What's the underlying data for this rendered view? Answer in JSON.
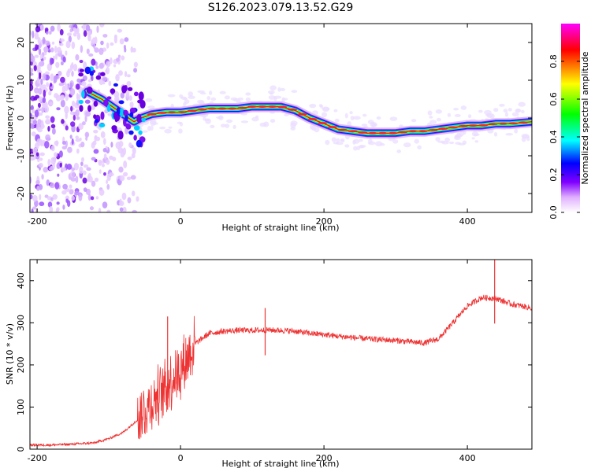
{
  "title": "S126.2023.079.13.52.G29",
  "colors": {
    "snr_line": "#ee3333",
    "ridge_core": "#dd2222",
    "frame": "#000000"
  },
  "chart_data": [
    {
      "type": "heatmap",
      "xlabel": "Height of straight line (km)",
      "ylabel": "Frequency (Hz)",
      "xlim": [
        -210,
        490
      ],
      "ylim": [
        -25,
        25
      ],
      "xticks": [
        -200,
        0,
        200,
        400
      ],
      "yticks": [
        -20,
        -10,
        0,
        10,
        20
      ],
      "colorbar": {
        "label": "Normalized spectral amplitude",
        "range": [
          0,
          1
        ],
        "ticks": [
          0.0,
          0.2,
          0.4,
          0.6,
          0.8
        ],
        "colormap": [
          "#ffffff",
          "#e0b0ff",
          "#8000ff",
          "#0000ff",
          "#00ffff",
          "#00ff00",
          "#ffff00",
          "#ff0000",
          "#ff00ff"
        ]
      },
      "ridge": {
        "x": [
          -130,
          -110,
          -95,
          -80,
          -65,
          -55,
          -40,
          -20,
          0,
          20,
          40,
          60,
          80,
          100,
          120,
          140,
          160,
          180,
          200,
          220,
          240,
          260,
          280,
          300,
          320,
          340,
          360,
          380,
          400,
          420,
          440,
          460,
          490
        ],
        "freq_hz": [
          7,
          5,
          3,
          1,
          -1,
          0,
          1,
          1.5,
          1.5,
          2,
          2.5,
          2.5,
          2.5,
          3,
          3,
          3,
          2,
          0,
          -1.5,
          -3,
          -3.5,
          -4,
          -4,
          -4,
          -3.5,
          -3.5,
          -3,
          -2.5,
          -2,
          -2,
          -1.5,
          -1.5,
          -1
        ]
      },
      "noise_region_x": [
        -210,
        -60
      ]
    },
    {
      "type": "line",
      "xlabel": "Height of straight line (km)",
      "ylabel": "SNR (10 * v/v)",
      "xlim": [
        -210,
        490
      ],
      "ylim": [
        0,
        450
      ],
      "xticks": [
        -200,
        0,
        200,
        400
      ],
      "yticks": [
        0,
        100,
        200,
        300,
        400
      ],
      "series": [
        {
          "x": [
            -210,
            -180,
            -150,
            -120,
            -100,
            -80,
            -60,
            -40,
            -20,
            0,
            20,
            40,
            60,
            80,
            100,
            120,
            140,
            160,
            180,
            200,
            220,
            240,
            260,
            280,
            300,
            320,
            340,
            360,
            380,
            400,
            420,
            440,
            460,
            490
          ],
          "y": [
            10,
            10,
            12,
            15,
            25,
            40,
            70,
            110,
            150,
            190,
            250,
            275,
            280,
            282,
            282,
            283,
            282,
            280,
            275,
            272,
            268,
            265,
            262,
            260,
            258,
            255,
            252,
            262,
            300,
            340,
            360,
            358,
            345,
            335
          ]
        }
      ],
      "spikes": [
        {
          "x": -18,
          "y": 315
        },
        {
          "x": 118,
          "y": 335
        },
        {
          "x": 438,
          "y": 450
        }
      ]
    }
  ]
}
